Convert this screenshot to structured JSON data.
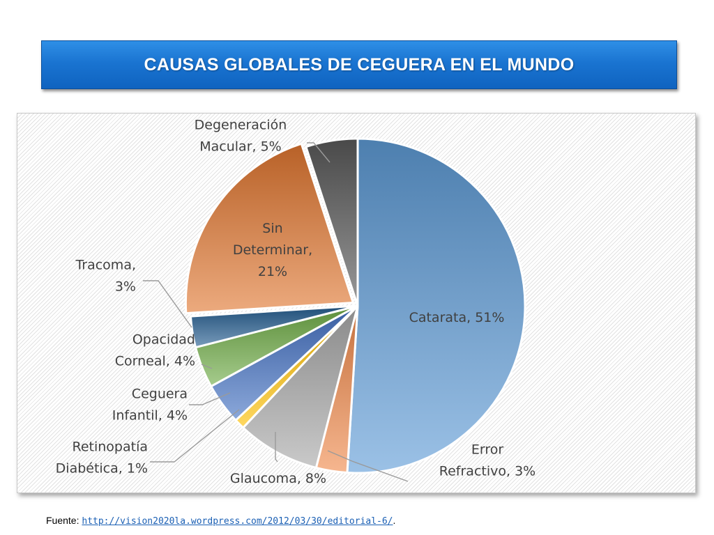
{
  "title": "CAUSAS GLOBALES DE CEGUERA EN EL MUNDO",
  "source": {
    "prefix": "Fuente: ",
    "link": "http://vision2020la.wordpress.com/2012/03/30/editorial-6/",
    "suffix": "."
  },
  "chart_data": {
    "type": "pie",
    "title": "",
    "legend": "none",
    "slices": [
      {
        "name": "Catarata",
        "value": 51,
        "label_lines": [
          "Catarata, 51%"
        ],
        "color": "#5e9bd6"
      },
      {
        "name": "Error Refractivo",
        "value": 3,
        "label_lines": [
          "Error",
          "Refractivo, 3%"
        ],
        "color": "#f08a4b"
      },
      {
        "name": "Glaucoma",
        "value": 8,
        "label_lines": [
          "Glaucoma, 8%"
        ],
        "color": "#a8a8a8"
      },
      {
        "name": "Retinopatía Diabética",
        "value": 1,
        "label_lines": [
          "Retinopatía",
          "Diabética, 1%"
        ],
        "color": "#ffc000"
      },
      {
        "name": "Ceguera Infantil",
        "value": 4,
        "label_lines": [
          "Ceguera",
          "Infantil, 4%"
        ],
        "color": "#4472c4"
      },
      {
        "name": "Opacidad Corneal",
        "value": 4,
        "label_lines": [
          "Opacidad",
          "Corneal, 4%"
        ],
        "color": "#70ad47"
      },
      {
        "name": "Tracoma",
        "value": 3,
        "label_lines": [
          "Tracoma,",
          "3%"
        ],
        "color": "#255e91"
      },
      {
        "name": "Sin Determinar",
        "value": 21,
        "label_lines": [
          "Sin",
          "Determinar,",
          "21%"
        ],
        "color": "#e0762f"
      },
      {
        "name": "Degeneración Macular",
        "value": 5,
        "label_lines": [
          "Degeneración",
          "Macular, 5%"
        ],
        "color": "#595959"
      }
    ]
  }
}
